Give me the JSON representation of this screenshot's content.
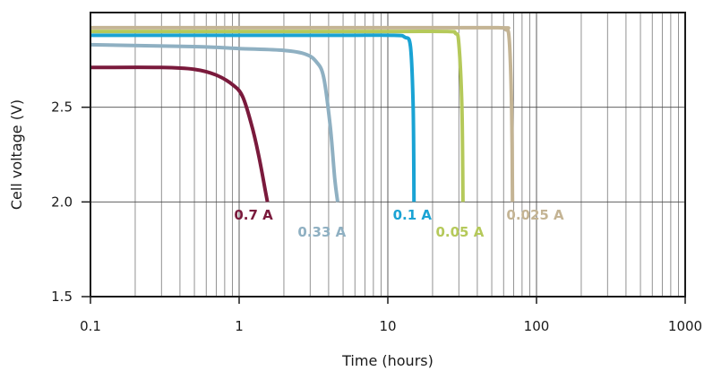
{
  "chart_data": {
    "type": "line",
    "title": "",
    "xlabel": "Time (hours)",
    "ylabel": "Cell voltage (V)",
    "xscale": "log",
    "xlim": [
      0.1,
      1000
    ],
    "ylim": [
      1.5,
      3.0
    ],
    "grid": true,
    "x_ticks": [
      {
        "value": 0.1,
        "label": "0.1"
      },
      {
        "value": 1,
        "label": "1"
      },
      {
        "value": 10,
        "label": "10"
      },
      {
        "value": 100,
        "label": "100"
      },
      {
        "value": 1000,
        "label": "1000"
      }
    ],
    "y_ticks": [
      {
        "value": 1.5,
        "label": "1.5"
      },
      {
        "value": 2.0,
        "label": "2.0"
      },
      {
        "value": 2.5,
        "label": "2.5"
      }
    ],
    "series": [
      {
        "name": "0.7 A",
        "color": "#7a1a3c",
        "x": [
          0.1,
          0.3,
          0.5,
          0.7,
          0.9,
          1.05,
          1.2,
          1.35,
          1.5,
          1.55
        ],
        "y": [
          2.71,
          2.71,
          2.7,
          2.67,
          2.62,
          2.56,
          2.42,
          2.25,
          2.06,
          2.0
        ]
      },
      {
        "name": "0.33 A",
        "color": "#8fb0c2",
        "x": [
          0.1,
          0.5,
          1.0,
          2.0,
          2.8,
          3.3,
          3.7,
          4.1,
          4.4,
          4.6
        ],
        "y": [
          2.83,
          2.82,
          2.81,
          2.8,
          2.78,
          2.74,
          2.66,
          2.4,
          2.12,
          2.0
        ]
      },
      {
        "name": "0.1 A",
        "color": "#1aa3d4",
        "x": [
          0.1,
          1,
          5,
          11,
          13,
          14.2,
          14.8,
          15.0
        ],
        "y": [
          2.88,
          2.88,
          2.88,
          2.88,
          2.87,
          2.82,
          2.5,
          2.0
        ]
      },
      {
        "name": "0.05 A",
        "color": "#b5c95a",
        "x": [
          0.1,
          1,
          10,
          25,
          28.5,
          30,
          31.5,
          32.0
        ],
        "y": [
          2.9,
          2.9,
          2.9,
          2.9,
          2.89,
          2.84,
          2.5,
          2.0
        ]
      },
      {
        "name": "0.025 A",
        "color": "#c4b494",
        "x": [
          0.1,
          1,
          10,
          55,
          62,
          65.5,
          68,
          69.0
        ],
        "y": [
          2.92,
          2.92,
          2.92,
          2.92,
          2.91,
          2.86,
          2.5,
          2.0
        ]
      }
    ],
    "annotations": [
      {
        "text": "0.7 A",
        "series": 0,
        "x": 1.25,
        "y": 1.93
      },
      {
        "text": "0.33 A",
        "series": 1,
        "x": 3.6,
        "y": 1.84
      },
      {
        "text": "0.1 A",
        "series": 2,
        "x": 14.6,
        "y": 1.93
      },
      {
        "text": "0.05 A",
        "series": 3,
        "x": 30.5,
        "y": 1.84
      },
      {
        "text": "0.025 A",
        "series": 4,
        "x": 98,
        "y": 1.93
      }
    ]
  }
}
